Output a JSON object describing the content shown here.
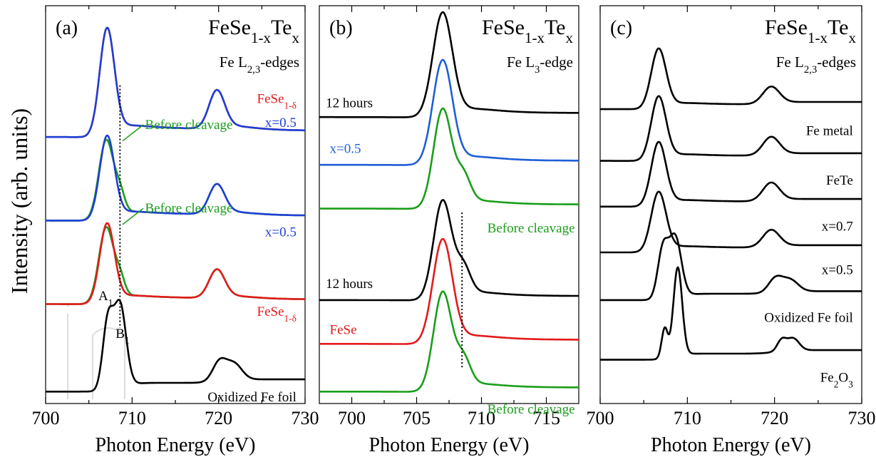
{
  "figure": {
    "ylabel": "Intensity (arb. units)",
    "xlabel": "Photon Energy (eV)"
  },
  "chart_data": [
    {
      "type": "line",
      "panel": "(a)",
      "title": "FeSe1-xTex",
      "subtitle": "Fe L2,3-edges",
      "xlabel": "Photon Energy (eV)",
      "ylabel": "Intensity (arb. units)",
      "xlim": [
        700,
        730
      ],
      "xticks": [
        700,
        710,
        720,
        730
      ],
      "ylim": [
        0,
        10
      ],
      "marker_x": 708.6,
      "series": [
        {
          "name": "FeSe1-δ",
          "color": "#e31a1c",
          "shape": "fese",
          "offset": 6.7,
          "amp": 2.7
        },
        {
          "name": "x=0.5",
          "color": "#1f3fd6",
          "shape": "fese",
          "offset": 6.7,
          "amp": 2.7
        },
        {
          "name": "Before cleavage",
          "color": "#1a9e1a",
          "shape": "beforeL23",
          "offset": 4.6,
          "amp": 2.1
        },
        {
          "name": "x=0.5",
          "color": "#1f3fd6",
          "shape": "fese",
          "offset": 4.6,
          "amp": 2.1
        },
        {
          "name": "Before cleavage",
          "color": "#1a9e1a",
          "shape": "beforeL23",
          "offset": 2.5,
          "amp": 2.0
        },
        {
          "name": "FeSe1-δ",
          "color": "#e31a1c",
          "shape": "fese",
          "offset": 2.5,
          "amp": 2.0
        },
        {
          "name": "Oxidized Fe foil",
          "color": "#000000",
          "shape": "oxid",
          "offset": 0.3,
          "amp": 2.2
        }
      ],
      "labels": [
        {
          "text": "FeSe1-δ",
          "color": "#e31a1c",
          "x": 729,
          "y": 7.55,
          "anchor": "end"
        },
        {
          "text": "x=0.5",
          "color": "#1f3fd6",
          "x": 729,
          "y": 6.95,
          "anchor": "end"
        },
        {
          "text": "Before cleavage",
          "color": "#1a9e1a",
          "x": 711.5,
          "y": 6.9,
          "anchor": "start"
        },
        {
          "text": "x=0.5",
          "color": "#1f3fd6",
          "x": 729,
          "y": 4.2,
          "anchor": "end"
        },
        {
          "text": "Before cleavage",
          "color": "#1a9e1a",
          "x": 711.5,
          "y": 4.8,
          "anchor": "start"
        },
        {
          "text": "FeSe1-δ",
          "color": "#e31a1c",
          "x": 729,
          "y": 2.2,
          "anchor": "end"
        },
        {
          "text": "A1",
          "color": "#000000",
          "x": 706.1,
          "y": 2.6,
          "anchor": "start"
        },
        {
          "text": "B1",
          "color": "#000000",
          "x": 708.1,
          "y": 1.65,
          "anchor": "start"
        },
        {
          "text": "Oxidized Fe foil",
          "color": "#000000",
          "x": 729,
          "y": 0.05,
          "anchor": "end"
        }
      ]
    },
    {
      "type": "line",
      "panel": "(b)",
      "title": "FeSe1-xTex",
      "subtitle": "Fe L3-edge",
      "xlabel": "Photon Energy (eV)",
      "ylabel": "",
      "xlim": [
        697.5,
        717.5
      ],
      "xticks": [
        700,
        705,
        710,
        715
      ],
      "ylim": [
        0,
        10
      ],
      "marker_x": 708.5,
      "series": [
        {
          "name": "12 hours",
          "color": "#000000",
          "shape": "l3",
          "offset": 7.2,
          "amp": 2.6
        },
        {
          "name": "x=0.5",
          "color": "#1f5fd6",
          "shape": "l3",
          "offset": 6.0,
          "amp": 2.6
        },
        {
          "name": "Before cleavage",
          "color": "#1a9e1a",
          "shape": "l3before",
          "offset": 4.9,
          "amp": 2.6
        },
        {
          "name": "12 hours",
          "color": "#000000",
          "shape": "l3before",
          "offset": 2.6,
          "amp": 2.6
        },
        {
          "name": "FeSe",
          "color": "#e31a1c",
          "shape": "l3",
          "offset": 1.5,
          "amp": 2.6
        },
        {
          "name": "Before cleavage",
          "color": "#1a9e1a",
          "shape": "l3before",
          "offset": 0.3,
          "amp": 2.6
        }
      ],
      "labels": [
        {
          "text": "12 hours",
          "color": "#000000",
          "x": 698,
          "y": 7.45,
          "anchor": "start"
        },
        {
          "text": "x=0.5",
          "color": "#1f5fd6",
          "x": 698.3,
          "y": 6.3,
          "anchor": "start"
        },
        {
          "text": "Before cleavage",
          "color": "#1a9e1a",
          "x": 717.2,
          "y": 4.3,
          "anchor": "end"
        },
        {
          "text": "12 hours",
          "color": "#000000",
          "x": 698,
          "y": 2.9,
          "anchor": "start"
        },
        {
          "text": "FeSe",
          "color": "#e31a1c",
          "x": 698.3,
          "y": 1.75,
          "anchor": "start"
        },
        {
          "text": "Before cleavage",
          "color": "#1a9e1a",
          "x": 717.2,
          "y": -0.25,
          "anchor": "end"
        }
      ]
    },
    {
      "type": "line",
      "panel": "(c)",
      "title": "FeSe1-xTex",
      "subtitle": "Fe L2,3-edges",
      "xlabel": "Photon Energy (eV)",
      "ylabel": "",
      "xlim": [
        700,
        730
      ],
      "xticks": [
        700,
        710,
        720,
        730
      ],
      "ylim": [
        0,
        10
      ],
      "series": [
        {
          "name": "Fe metal",
          "color": "#000000",
          "shape": "metal",
          "offset": 7.4,
          "amp": 1.5
        },
        {
          "name": "FeTe",
          "color": "#000000",
          "shape": "metal",
          "offset": 6.1,
          "amp": 1.6
        },
        {
          "name": "x=0.7",
          "color": "#000000",
          "shape": "metal",
          "offset": 4.95,
          "amp": 1.6
        },
        {
          "name": "x=0.5",
          "color": "#000000",
          "shape": "metal",
          "offset": 3.8,
          "amp": 1.5
        },
        {
          "name": "Oxidized Fe foil",
          "color": "#000000",
          "shape": "oxid",
          "offset": 2.6,
          "amp": 1.6
        },
        {
          "name": "Fe2O3",
          "color": "#000000",
          "shape": "fe2o3",
          "offset": 1.1,
          "amp": 2.2
        }
      ],
      "labels": [
        {
          "text": "Fe metal",
          "color": "#000000",
          "x": 729,
          "y": 6.75,
          "anchor": "end"
        },
        {
          "text": "FeTe",
          "color": "#000000",
          "x": 729,
          "y": 5.5,
          "anchor": "end"
        },
        {
          "text": "x=0.7",
          "color": "#000000",
          "x": 729,
          "y": 4.35,
          "anchor": "end"
        },
        {
          "text": "x=0.5",
          "color": "#000000",
          "x": 729,
          "y": 3.25,
          "anchor": "end"
        },
        {
          "text": "Oxidized Fe foil",
          "color": "#000000",
          "x": 729,
          "y": 2.05,
          "anchor": "end"
        },
        {
          "text": "Fe2O3",
          "color": "#000000",
          "x": 729,
          "y": 0.55,
          "anchor": "end"
        }
      ]
    }
  ]
}
